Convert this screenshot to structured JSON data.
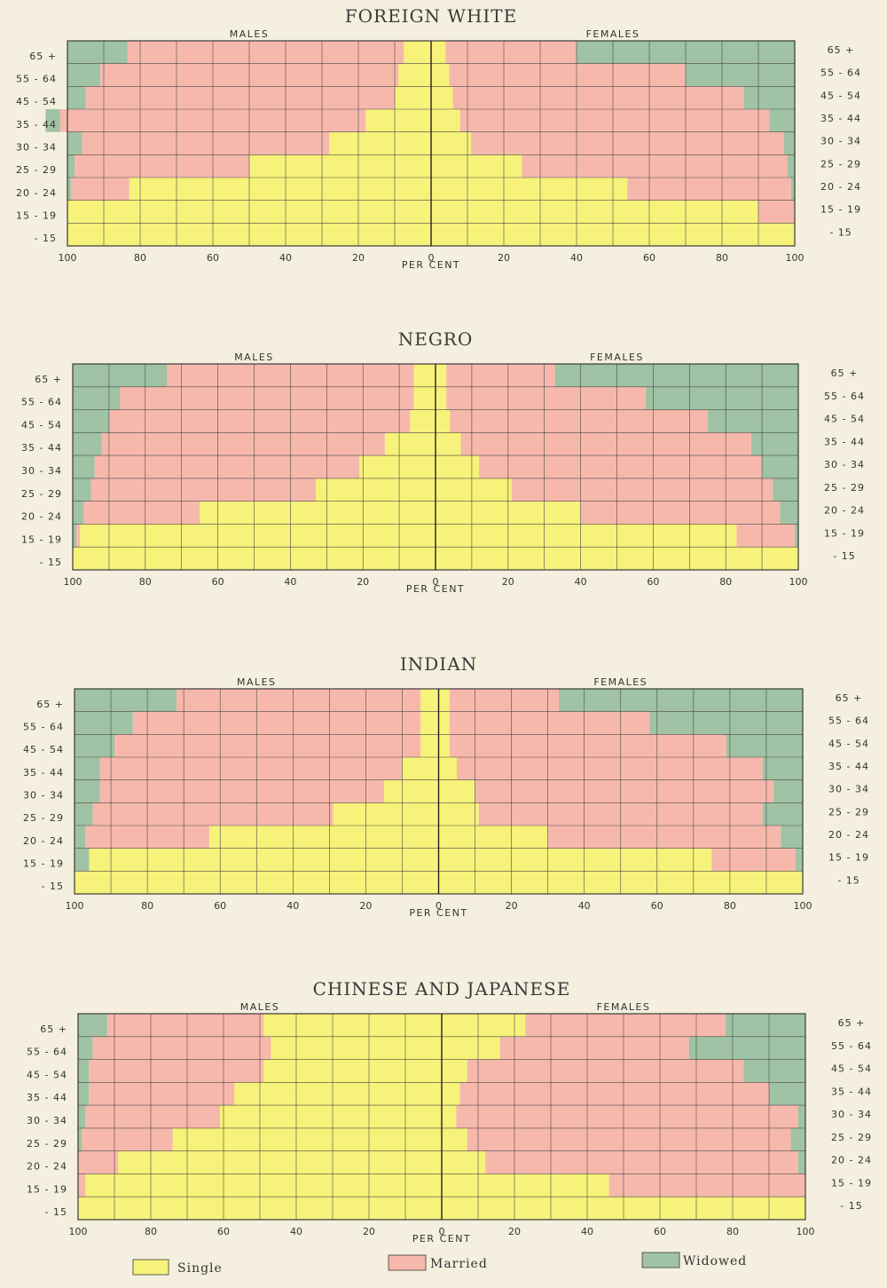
{
  "colors": {
    "single": "#f7f27a",
    "married": "#f7b8ac",
    "widowed": "#9fc3a4",
    "grid": "#4a4a4a",
    "frame": "#3a3a3a"
  },
  "legend": {
    "single": "Single",
    "married": "Married",
    "widowed": "Widowed"
  },
  "chart_data": [
    {
      "type": "bar",
      "title": "FOREIGN WHITE",
      "males_label": "MALES",
      "females_label": "FEMALES",
      "xlabel": "PER CENT",
      "xlim": [
        -100,
        100
      ],
      "ticks": [
        {
          "pos": -100,
          "label": "100"
        },
        {
          "pos": -80,
          "label": "80"
        },
        {
          "pos": -60,
          "label": "60"
        },
        {
          "pos": -40,
          "label": "40"
        },
        {
          "pos": -20,
          "label": "20"
        },
        {
          "pos": 0,
          "label": "0"
        },
        {
          "pos": 20,
          "label": "20"
        },
        {
          "pos": 40,
          "label": "40"
        },
        {
          "pos": 60,
          "label": "60"
        },
        {
          "pos": 80,
          "label": "80"
        },
        {
          "pos": 100,
          "label": "100"
        }
      ],
      "categories": [
        "65 +",
        "55 - 64",
        "45 - 54",
        "35 - 44",
        "30 - 34",
        "25 - 29",
        "20 - 24",
        "15 - 19",
        "- 15"
      ],
      "males": {
        "single": [
          7.5,
          9,
          10,
          18,
          28,
          50,
          83,
          100,
          100
        ],
        "married": [
          76,
          82,
          85,
          84,
          68,
          48,
          16,
          0,
          0
        ],
        "widowed": [
          16.5,
          9,
          5,
          4,
          4,
          2,
          1,
          0,
          0
        ]
      },
      "females": {
        "single": [
          4,
          5,
          6,
          8,
          11,
          25,
          54,
          90,
          100
        ],
        "married": [
          36,
          65,
          80,
          85,
          86,
          73,
          45,
          10,
          0
        ],
        "widowed": [
          60,
          30,
          14,
          7,
          3,
          2,
          1,
          0,
          0
        ]
      }
    },
    {
      "type": "bar",
      "title": "NEGRO",
      "males_label": "MALES",
      "females_label": "FEMALES",
      "xlabel": "PER CENT",
      "xlim": [
        -100,
        100
      ],
      "ticks": [
        {
          "pos": -100,
          "label": "100"
        },
        {
          "pos": -80,
          "label": "80"
        },
        {
          "pos": -60,
          "label": "60"
        },
        {
          "pos": -40,
          "label": "40"
        },
        {
          "pos": -20,
          "label": "20"
        },
        {
          "pos": 0,
          "label": "0"
        },
        {
          "pos": 20,
          "label": "20"
        },
        {
          "pos": 40,
          "label": "40"
        },
        {
          "pos": 60,
          "label": "60"
        },
        {
          "pos": 80,
          "label": "80"
        },
        {
          "pos": 100,
          "label": "100"
        }
      ],
      "categories": [
        "65 +",
        "55 - 64",
        "45 - 54",
        "35 - 44",
        "30 - 34",
        "25 - 29",
        "20 - 24",
        "15 - 19",
        "- 15"
      ],
      "males": {
        "single": [
          6,
          6,
          7,
          14,
          21,
          33,
          65,
          98,
          100
        ],
        "married": [
          68,
          81,
          83,
          78,
          73,
          62,
          32,
          1,
          0
        ],
        "widowed": [
          26,
          13,
          10,
          8,
          6,
          5,
          3,
          1,
          0
        ]
      },
      "females": {
        "single": [
          3,
          3,
          4,
          7,
          12,
          21,
          40,
          83,
          100
        ],
        "married": [
          30,
          55,
          71,
          80,
          78,
          72,
          55,
          16,
          0
        ],
        "widowed": [
          67,
          42,
          25,
          13,
          10,
          7,
          5,
          1,
          0
        ]
      }
    },
    {
      "type": "bar",
      "title": "INDIAN",
      "males_label": "MALES",
      "females_label": "FEMALES",
      "xlabel": "PER CENT",
      "xlim": [
        -100,
        100
      ],
      "ticks": [
        {
          "pos": -100,
          "label": "100"
        },
        {
          "pos": -80,
          "label": "80"
        },
        {
          "pos": -60,
          "label": "60"
        },
        {
          "pos": -40,
          "label": "40"
        },
        {
          "pos": -20,
          "label": "20"
        },
        {
          "pos": 0,
          "label": "0"
        },
        {
          "pos": 20,
          "label": "20"
        },
        {
          "pos": 40,
          "label": "40"
        },
        {
          "pos": 60,
          "label": "60"
        },
        {
          "pos": 80,
          "label": "80"
        },
        {
          "pos": 100,
          "label": "100"
        }
      ],
      "categories": [
        "65 +",
        "55 - 64",
        "45 - 54",
        "35 - 44",
        "30 - 34",
        "25 - 29",
        "20 - 24",
        "15 - 19",
        "- 15"
      ],
      "males": {
        "single": [
          5,
          5,
          5,
          10,
          15,
          29,
          63,
          96,
          100
        ],
        "married": [
          67,
          79,
          84,
          83,
          78,
          66,
          34,
          0,
          0
        ],
        "widowed": [
          28,
          16,
          11,
          7,
          7,
          5,
          3,
          4,
          0
        ]
      },
      "females": {
        "single": [
          3,
          3,
          3,
          5,
          10,
          11,
          30,
          75,
          100
        ],
        "married": [
          30,
          55,
          76,
          84,
          82,
          78,
          64,
          23,
          0
        ],
        "widowed": [
          67,
          42,
          21,
          11,
          8,
          11,
          6,
          2,
          0
        ]
      }
    },
    {
      "type": "bar",
      "title": "CHINESE AND JAPANESE",
      "males_label": "MALES",
      "females_label": "FEMALES",
      "xlabel": "PER CENT",
      "xlim": [
        -100,
        100
      ],
      "ticks": [
        {
          "pos": -100,
          "label": "100"
        },
        {
          "pos": -80,
          "label": "80"
        },
        {
          "pos": -60,
          "label": "60"
        },
        {
          "pos": -40,
          "label": "40"
        },
        {
          "pos": -20,
          "label": "20"
        },
        {
          "pos": 0,
          "label": "0"
        },
        {
          "pos": 20,
          "label": "20"
        },
        {
          "pos": 40,
          "label": "40"
        },
        {
          "pos": 60,
          "label": "60"
        },
        {
          "pos": 80,
          "label": "80"
        },
        {
          "pos": 100,
          "label": "100"
        }
      ],
      "categories": [
        "65 +",
        "55 - 64",
        "45 - 54",
        "35 - 44",
        "30 - 34",
        "25 - 29",
        "20 - 24",
        "15 - 19",
        "- 15"
      ],
      "males": {
        "single": [
          49,
          47,
          49,
          57,
          61,
          74,
          89,
          98,
          100
        ],
        "married": [
          43,
          49,
          48,
          40,
          37,
          25,
          11,
          2,
          0
        ],
        "widowed": [
          8,
          4,
          3,
          3,
          2,
          1,
          0,
          0,
          0
        ]
      },
      "females": {
        "single": [
          23,
          16,
          7,
          5,
          4,
          7,
          12,
          46,
          100
        ],
        "married": [
          55,
          52,
          76,
          85,
          94,
          89,
          86,
          54,
          0
        ],
        "widowed": [
          22,
          32,
          17,
          10,
          2,
          4,
          2,
          0,
          0
        ]
      }
    }
  ]
}
